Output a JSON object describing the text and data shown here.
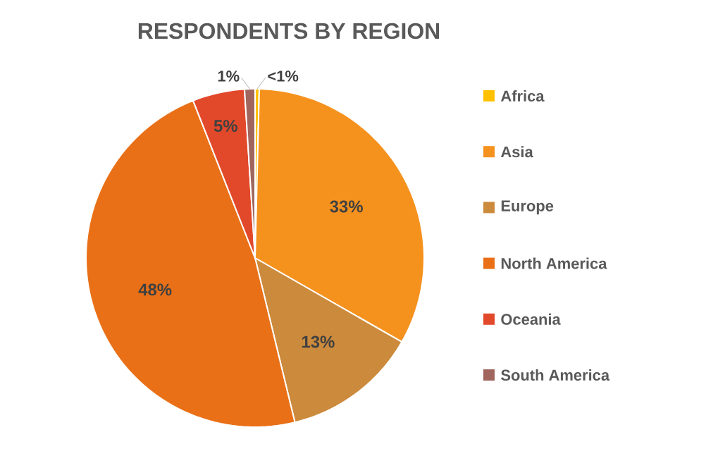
{
  "chart_data": {
    "type": "pie",
    "title": "RESPONDENTS BY REGION",
    "categories": [
      "Africa",
      "Asia",
      "Europe",
      "North America",
      "Oceania",
      "South America"
    ],
    "values": [
      0.4,
      33,
      13,
      48,
      5,
      1
    ],
    "value_labels": [
      "<1%",
      "33%",
      "13%",
      "48%",
      "5%",
      "1%"
    ],
    "colors": [
      "#ffc000",
      "#f5921e",
      "#cc8a3c",
      "#e97017",
      "#e2492a",
      "#a0665e"
    ],
    "legend": "right"
  }
}
